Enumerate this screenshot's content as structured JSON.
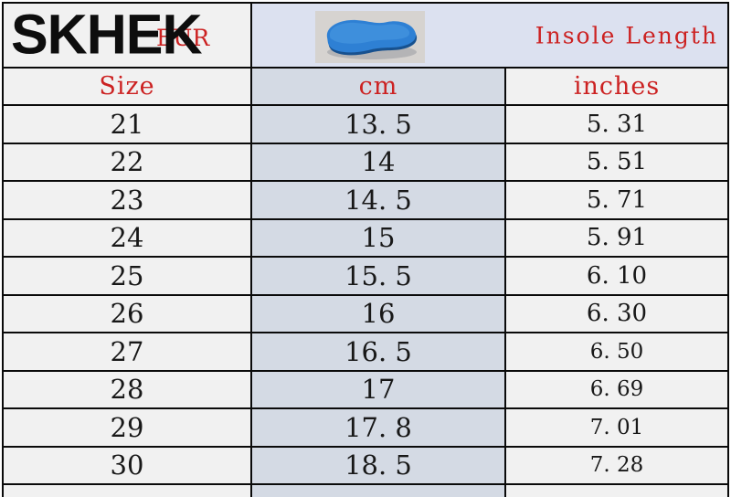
{
  "header": {
    "brand": "SKHEK",
    "region_label": "EUR",
    "title": "Insole Length",
    "insole_icon": "blue-insole-photo"
  },
  "table": {
    "columns": {
      "size": "Size",
      "cm": "cm",
      "inches": "inches"
    },
    "rows": [
      {
        "size": "21",
        "cm": "13. 5",
        "inches": "5. 31"
      },
      {
        "size": "22",
        "cm": "14",
        "inches": "5. 51"
      },
      {
        "size": "23",
        "cm": "14. 5",
        "inches": "5. 71"
      },
      {
        "size": "24",
        "cm": "15",
        "inches": "5. 91"
      },
      {
        "size": "25",
        "cm": "15. 5",
        "inches": "6. 10"
      },
      {
        "size": "26",
        "cm": "16",
        "inches": "6. 30"
      },
      {
        "size": "27",
        "cm": "16. 5",
        "inches": "6. 50"
      },
      {
        "size": "28",
        "cm": "17",
        "inches": "6. 69"
      },
      {
        "size": "29",
        "cm": "17. 8",
        "inches": "7. 01"
      },
      {
        "size": "30",
        "cm": "18. 5",
        "inches": "7. 28"
      }
    ]
  },
  "colors": {
    "accent_red": "#cc2222",
    "cm_column_bg": "#d4dae4",
    "header_row_bg": "#dce1f0",
    "cell_bg": "#f1f1f1",
    "border": "#0a0a0a",
    "insole_blue": "#2e80d4"
  }
}
